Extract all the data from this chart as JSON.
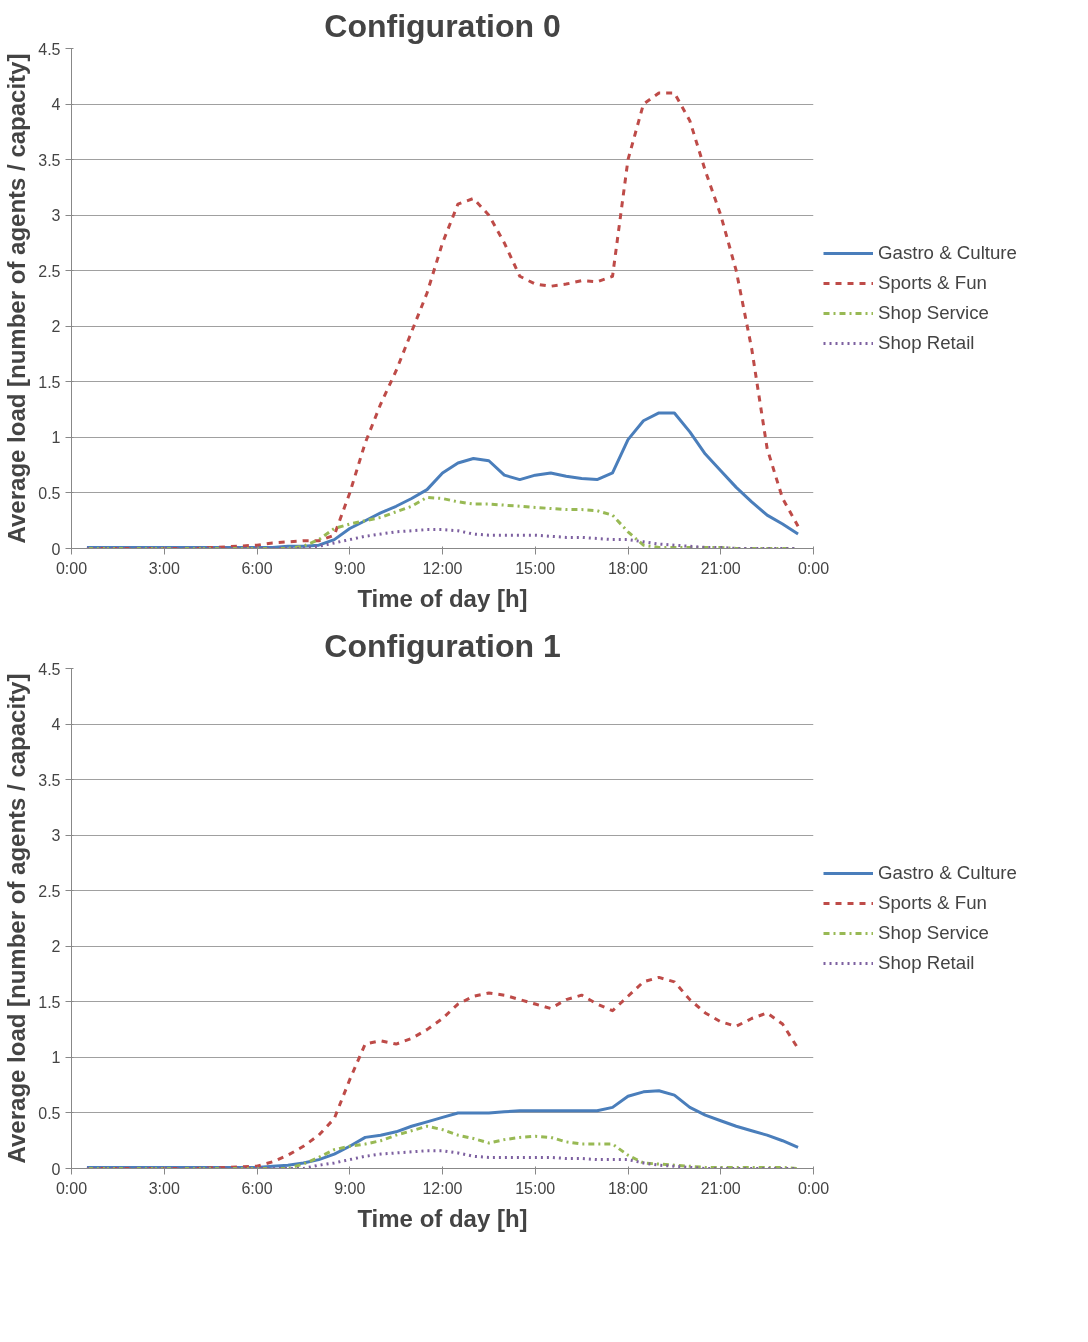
{
  "chart_data": [
    {
      "type": "line",
      "title": "Configuration 0",
      "xlabel": "Time of day [h]",
      "ylabel": "Average load [number of agents / capacity]",
      "xlim": [
        0,
        24
      ],
      "ylim": [
        0,
        4.5
      ],
      "xticks": [
        {
          "value": 0,
          "label": "0:00"
        },
        {
          "value": 3,
          "label": "3:00"
        },
        {
          "value": 6,
          "label": "6:00"
        },
        {
          "value": 9,
          "label": "9:00"
        },
        {
          "value": 12,
          "label": "12:00"
        },
        {
          "value": 15,
          "label": "15:00"
        },
        {
          "value": 18,
          "label": "18:00"
        },
        {
          "value": 21,
          "label": "21:00"
        },
        {
          "value": 24,
          "label": "0:00"
        }
      ],
      "yticks": [
        0,
        0.5,
        1,
        1.5,
        2,
        2.5,
        3,
        3.5,
        4,
        4.5
      ],
      "grid": "y",
      "legend": "right",
      "x": [
        0.5,
        2,
        4,
        6,
        6.5,
        7,
        7.5,
        8,
        8.5,
        9,
        9.5,
        10,
        10.5,
        11,
        11.5,
        12,
        12.5,
        13,
        13.5,
        14,
        14.5,
        15,
        15.5,
        16,
        16.5,
        17,
        17.5,
        18,
        18.5,
        19,
        19.5,
        20,
        20.5,
        21,
        21.5,
        22,
        22.5,
        23,
        23.5
      ],
      "series": [
        {
          "name": "Gastro & Culture",
          "color": "#4a7ebb",
          "line_style": "solid",
          "values": [
            0.01,
            0.01,
            0.01,
            0.01,
            0.01,
            0.02,
            0.02,
            0.03,
            0.08,
            0.18,
            0.25,
            0.32,
            0.38,
            0.45,
            0.53,
            0.68,
            0.77,
            0.81,
            0.79,
            0.66,
            0.62,
            0.66,
            0.68,
            0.65,
            0.63,
            0.62,
            0.68,
            0.98,
            1.15,
            1.22,
            1.22,
            1.05,
            0.85,
            0.7,
            0.55,
            0.42,
            0.3,
            0.22,
            0.13
          ]
        },
        {
          "name": "Sports & Fun",
          "color": "#be4b48",
          "line_style": "dashed",
          "values": [
            0,
            0,
            0,
            0.03,
            0.05,
            0.06,
            0.07,
            0.07,
            0.12,
            0.5,
            0.95,
            1.3,
            1.6,
            1.95,
            2.3,
            2.75,
            3.1,
            3.15,
            3.0,
            2.75,
            2.45,
            2.38,
            2.36,
            2.38,
            2.41,
            2.4,
            2.45,
            3.5,
            4.0,
            4.1,
            4.1,
            3.85,
            3.4,
            3.0,
            2.5,
            1.8,
            0.9,
            0.45,
            0.2
          ]
        },
        {
          "name": "Shop Service",
          "color": "#98b954",
          "line_style": "dashdot",
          "values": [
            0,
            0,
            0,
            0,
            0,
            0,
            0.02,
            0.08,
            0.18,
            0.22,
            0.25,
            0.28,
            0.33,
            0.38,
            0.46,
            0.45,
            0.42,
            0.4,
            0.4,
            0.39,
            0.38,
            0.37,
            0.36,
            0.35,
            0.35,
            0.34,
            0.3,
            0.15,
            0.03,
            0.01,
            0.01,
            0.01,
            0.01,
            0.01,
            0,
            0,
            0,
            0,
            0
          ]
        },
        {
          "name": "Shop Retail",
          "color": "#7d60a0",
          "line_style": "dotted",
          "values": [
            0,
            0,
            0,
            0,
            0,
            0,
            0,
            0.02,
            0.05,
            0.08,
            0.11,
            0.13,
            0.15,
            0.16,
            0.17,
            0.17,
            0.16,
            0.13,
            0.12,
            0.12,
            0.12,
            0.12,
            0.11,
            0.1,
            0.1,
            0.09,
            0.08,
            0.08,
            0.06,
            0.04,
            0.03,
            0.02,
            0.01,
            0.01,
            0,
            0,
            0,
            0,
            0
          ]
        }
      ]
    },
    {
      "type": "line",
      "title": "Configuration 1",
      "xlabel": "Time of day [h]",
      "ylabel": "Average load [number of agents / capacity]",
      "xlim": [
        0,
        24
      ],
      "ylim": [
        0,
        4.5
      ],
      "xticks": [
        {
          "value": 0,
          "label": "0:00"
        },
        {
          "value": 3,
          "label": "3:00"
        },
        {
          "value": 6,
          "label": "6:00"
        },
        {
          "value": 9,
          "label": "9:00"
        },
        {
          "value": 12,
          "label": "12:00"
        },
        {
          "value": 15,
          "label": "15:00"
        },
        {
          "value": 18,
          "label": "18:00"
        },
        {
          "value": 21,
          "label": "21:00"
        },
        {
          "value": 24,
          "label": "0:00"
        }
      ],
      "yticks": [
        0,
        0.5,
        1,
        1.5,
        2,
        2.5,
        3,
        3.5,
        4,
        4.5
      ],
      "grid": "y",
      "legend": "right",
      "x": [
        0.5,
        2,
        4,
        6,
        6.5,
        7,
        7.5,
        8,
        8.5,
        9,
        9.5,
        10,
        10.5,
        11,
        11.5,
        12,
        12.5,
        13,
        13.5,
        14,
        14.5,
        15,
        15.5,
        16,
        16.5,
        17,
        17.5,
        18,
        18.5,
        19,
        19.5,
        20,
        20.5,
        21,
        21.5,
        22,
        22.5,
        23,
        23.5
      ],
      "series": [
        {
          "name": "Gastro & Culture",
          "color": "#4a7ebb",
          "line_style": "solid",
          "values": [
            0.01,
            0.01,
            0.01,
            0.01,
            0.02,
            0.03,
            0.05,
            0.08,
            0.13,
            0.2,
            0.28,
            0.3,
            0.33,
            0.38,
            0.42,
            0.46,
            0.5,
            0.5,
            0.5,
            0.51,
            0.52,
            0.52,
            0.52,
            0.52,
            0.52,
            0.52,
            0.55,
            0.65,
            0.69,
            0.7,
            0.66,
            0.55,
            0.48,
            0.43,
            0.38,
            0.34,
            0.3,
            0.25,
            0.19
          ]
        },
        {
          "name": "Sports & Fun",
          "color": "#be4b48",
          "line_style": "dashed",
          "values": [
            0,
            0,
            0,
            0.02,
            0.06,
            0.12,
            0.2,
            0.3,
            0.45,
            0.8,
            1.12,
            1.15,
            1.12,
            1.17,
            1.25,
            1.35,
            1.48,
            1.55,
            1.58,
            1.56,
            1.52,
            1.48,
            1.44,
            1.52,
            1.56,
            1.48,
            1.42,
            1.55,
            1.68,
            1.72,
            1.68,
            1.52,
            1.4,
            1.32,
            1.28,
            1.35,
            1.4,
            1.3,
            1.08
          ]
        },
        {
          "name": "Shop Service",
          "color": "#98b954",
          "line_style": "dashdot",
          "values": [
            0,
            0,
            0,
            0,
            0,
            0,
            0.04,
            0.1,
            0.17,
            0.2,
            0.22,
            0.25,
            0.3,
            0.34,
            0.38,
            0.35,
            0.3,
            0.27,
            0.23,
            0.26,
            0.28,
            0.29,
            0.28,
            0.24,
            0.22,
            0.22,
            0.22,
            0.12,
            0.05,
            0.04,
            0.03,
            0.02,
            0.01,
            0.01,
            0.01,
            0.01,
            0.01,
            0.01,
            0
          ]
        },
        {
          "name": "Shop Retail",
          "color": "#7d60a0",
          "line_style": "dotted",
          "values": [
            0,
            0,
            0,
            0,
            0,
            0,
            0,
            0.03,
            0.05,
            0.08,
            0.11,
            0.13,
            0.14,
            0.15,
            0.16,
            0.16,
            0.14,
            0.11,
            0.1,
            0.1,
            0.1,
            0.1,
            0.1,
            0.09,
            0.09,
            0.08,
            0.08,
            0.08,
            0.05,
            0.03,
            0.02,
            0.01,
            0,
            0,
            0,
            0,
            0,
            0,
            0
          ]
        }
      ]
    }
  ]
}
